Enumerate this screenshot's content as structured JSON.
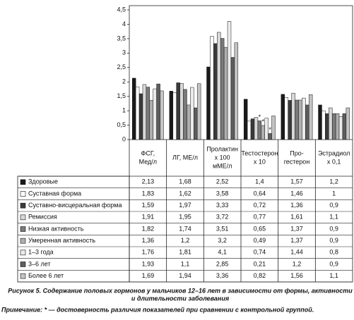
{
  "chart_data": {
    "type": "bar",
    "categories": [
      [
        "ФСГ,",
        "Мед/л"
      ],
      [
        "ЛГ, МЕ/л"
      ],
      [
        "Пролактин",
        "x 100",
        "мМЕ/л"
      ],
      [
        "Тестостерон",
        "x 10"
      ],
      [
        "Про-",
        "гестерон"
      ],
      [
        "Эстрадиол",
        "x 0,1"
      ]
    ],
    "ylim": [
      0,
      4.5
    ],
    "yticks": [
      0,
      {
        "value": 0.5,
        "label": "0,5"
      },
      1,
      {
        "value": 1.5,
        "label": "1,5"
      },
      2,
      {
        "value": 2.5,
        "label": "2,5"
      },
      3,
      {
        "value": 3.5,
        "label": "3,5"
      },
      4,
      {
        "value": 4.5,
        "label": "4,5"
      }
    ],
    "series": [
      {
        "name": "Здоровые",
        "color": "#1a1a1a",
        "values": [
          2.13,
          1.68,
          2.52,
          1.4,
          1.57,
          1.2
        ],
        "value_labels": [
          "2,13",
          "1,68",
          "2,52",
          "1,4",
          "1,57",
          "1,2"
        ]
      },
      {
        "name": "Суставная форма",
        "color": "#ffffff",
        "values": [
          1.83,
          1.62,
          3.58,
          0.64,
          1.46,
          1
        ],
        "value_labels": [
          "1,83",
          "1,62",
          "3,58",
          "0,64",
          "1,46",
          "1"
        ]
      },
      {
        "name": "Суставно-висцеральная форма",
        "color": "#3a3a3a",
        "values": [
          1.59,
          1.97,
          3.33,
          0.72,
          1.36,
          0.9
        ],
        "value_labels": [
          "1,59",
          "1,97",
          "3,33",
          "0,72",
          "1,36",
          "0,9"
        ]
      },
      {
        "name": "Ремиссия",
        "color": "#d8d8d8",
        "values": [
          1.91,
          1.95,
          3.72,
          0.77,
          1.61,
          1.1
        ],
        "value_labels": [
          "1,91",
          "1,95",
          "3,72",
          "0,77",
          "1,61",
          "1,1"
        ]
      },
      {
        "name": "Низкая активность",
        "color": "#7a7a7a",
        "values": [
          1.82,
          1.74,
          3.51,
          0.65,
          1.37,
          0.9
        ],
        "value_labels": [
          "1,82",
          "1,74",
          "3,51",
          "0,65",
          "1,37",
          "0,9"
        ]
      },
      {
        "name": "Умеренная активность",
        "color": "#b0b0b0",
        "values": [
          1.36,
          1.2,
          3.2,
          0.49,
          1.37,
          0.9
        ],
        "value_labels": [
          "1,36",
          "1,2",
          "3,2",
          "0,49",
          "1,37",
          "0,9"
        ]
      },
      {
        "name": "1–3 года",
        "color": "#ebebeb",
        "values": [
          1.76,
          1.81,
          4.1,
          0.74,
          1.44,
          0.8
        ],
        "value_labels": [
          "1,76",
          "1,81",
          "4,1",
          "0,74",
          "1,44",
          "0,8"
        ]
      },
      {
        "name": "3–6 лет",
        "color": "#5e5e5e",
        "values": [
          1.93,
          1.1,
          2.85,
          0.21,
          1.2,
          0.9
        ],
        "value_labels": [
          "1,93",
          "1,1",
          "2,85",
          "0,21",
          "1,2",
          "0,9"
        ]
      },
      {
        "name": "Более 6 лет",
        "color": "#c4c4c4",
        "values": [
          1.69,
          1.94,
          3.36,
          0.82,
          1.56,
          1.1
        ],
        "value_labels": [
          "1,69",
          "1,94",
          "3,36",
          "0,82",
          "1,56",
          "1,1"
        ]
      }
    ],
    "annotations": [
      {
        "text": "*",
        "category": 3,
        "series": 4
      },
      {
        "text": "*",
        "category": 3,
        "series": 5
      },
      {
        "text": "*",
        "category": 3,
        "series": 7
      }
    ]
  },
  "caption": [
    "Рисунок 5. Содержание половых гормонов у мальчиков 12–16 лет в зависимости от формы, активности",
    "и длительности заболевания"
  ],
  "note": "Примечание: * — достоверность различия показателей при сравнении с контрольной группой."
}
